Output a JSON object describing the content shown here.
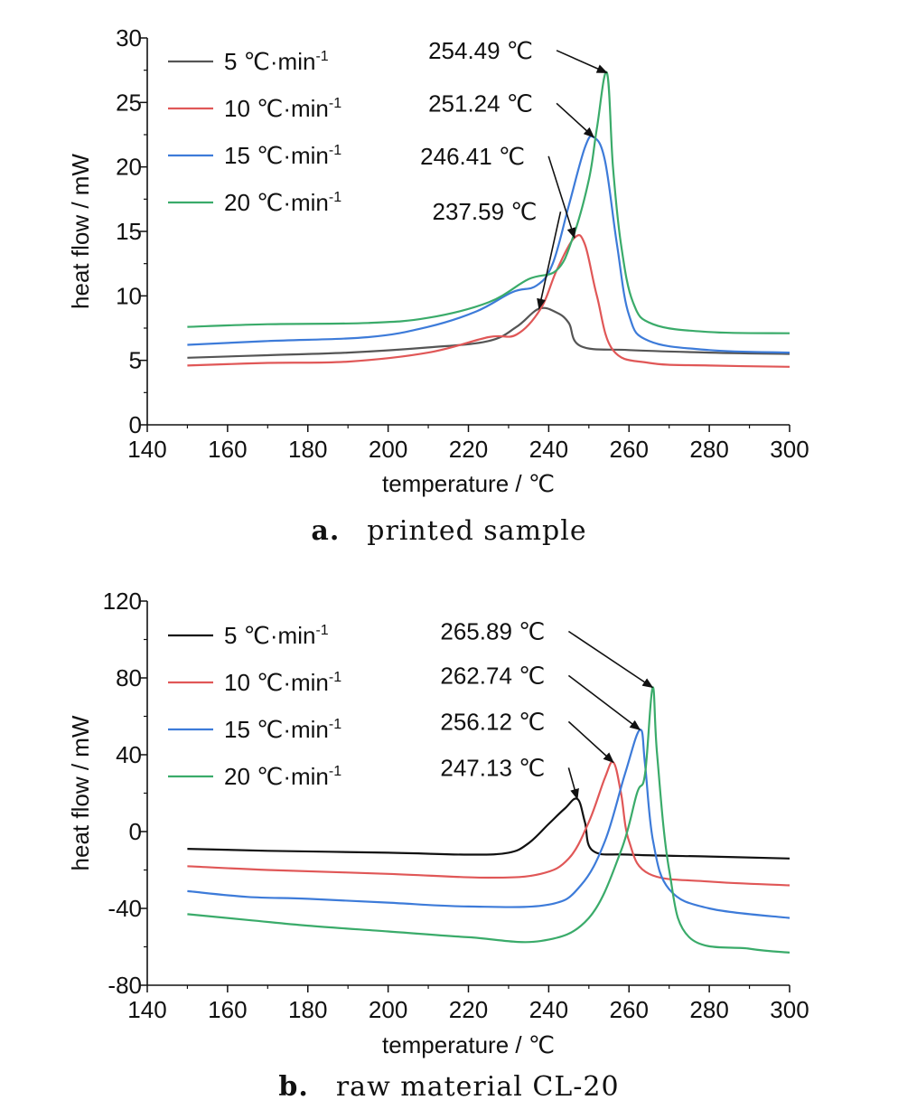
{
  "chart_data": [
    {
      "type": "line",
      "panel_label": "a.",
      "caption": "printed sample",
      "xlabel": "temperature / ℃",
      "ylabel": "heat flow / mW",
      "xlim": [
        140,
        300
      ],
      "ylim": [
        0,
        30
      ],
      "xticks": [
        140,
        160,
        180,
        200,
        220,
        240,
        260,
        280,
        300
      ],
      "yticks": [
        0,
        5,
        10,
        15,
        20,
        25,
        30
      ],
      "grid": false,
      "legend_position": "top-left",
      "series": [
        {
          "name": "5 ℃·min",
          "legend_sup": "-1",
          "color": "#555555",
          "x": [
            150,
            170,
            190,
            210,
            225,
            232,
            237.59,
            242,
            245,
            248,
            260,
            280,
            300
          ],
          "y": [
            5.2,
            5.4,
            5.6,
            6.0,
            6.5,
            7.6,
            9.0,
            8.7,
            7.9,
            6.1,
            5.8,
            5.6,
            5.5
          ]
        },
        {
          "name": "10 ℃·min",
          "legend_sup": "-1",
          "color": "#e05757",
          "x": [
            150,
            170,
            190,
            210,
            225,
            232,
            238,
            242,
            246.41,
            249,
            252,
            256,
            265,
            280,
            300
          ],
          "y": [
            4.6,
            4.8,
            4.9,
            5.6,
            6.8,
            7.0,
            9.0,
            12.0,
            14.5,
            14.0,
            10.0,
            5.8,
            4.8,
            4.6,
            4.5
          ]
        },
        {
          "name": "15 ℃·min",
          "legend_sup": "-1",
          "color": "#3d7bd9",
          "x": [
            150,
            170,
            195,
            210,
            222,
            231,
            237,
            241,
            245,
            249,
            251.24,
            254,
            257,
            260,
            265,
            280,
            300
          ],
          "y": [
            6.2,
            6.5,
            6.8,
            7.6,
            8.8,
            10.3,
            10.8,
            12.5,
            17.0,
            21.5,
            22.3,
            20.5,
            14.0,
            8.5,
            6.5,
            5.8,
            5.6
          ]
        },
        {
          "name": "20 ℃·min",
          "legend_sup": "-1",
          "color": "#3aab6a",
          "x": [
            150,
            170,
            195,
            210,
            225,
            235,
            242,
            246,
            250,
            252,
            254.49,
            256,
            258,
            261,
            266,
            280,
            300
          ],
          "y": [
            7.6,
            7.8,
            7.9,
            8.3,
            9.5,
            11.3,
            12.0,
            14.5,
            19.0,
            23.0,
            27.3,
            20.0,
            14.0,
            9.5,
            7.8,
            7.2,
            7.1
          ]
        }
      ],
      "annotations": [
        {
          "text": "254.49 ℃",
          "x": 254.49,
          "y": 27.3,
          "label_x": 210,
          "label_y": 28.4
        },
        {
          "text": "251.24 ℃",
          "x": 251.24,
          "y": 22.3,
          "label_x": 210,
          "label_y": 24.3
        },
        {
          "text": "246.41 ℃",
          "x": 246.41,
          "y": 14.5,
          "label_x": 208,
          "label_y": 20.2
        },
        {
          "text": "237.59 ℃",
          "x": 237.59,
          "y": 9.0,
          "label_x": 211,
          "label_y": 15.9
        }
      ]
    },
    {
      "type": "line",
      "panel_label": "b.",
      "caption": "raw material CL-20",
      "xlabel": "temperature / ℃",
      "ylabel": "heat flow / mW",
      "xlim": [
        140,
        300
      ],
      "ylim": [
        -80,
        120
      ],
      "xticks": [
        140,
        160,
        180,
        200,
        220,
        240,
        260,
        280,
        300
      ],
      "yticks": [
        -80,
        -40,
        0,
        40,
        80,
        120
      ],
      "grid": false,
      "legend_position": "top-left",
      "series": [
        {
          "name": "5 ℃·min",
          "legend_sup": "-1",
          "color": "#111111",
          "x": [
            150,
            170,
            200,
            220,
            230,
            235,
            240,
            244,
            247.13,
            249,
            251,
            260,
            280,
            300
          ],
          "y": [
            -9,
            -10,
            -11,
            -12,
            -11,
            -6,
            4,
            12,
            17,
            5,
            -10,
            -12,
            -13,
            -14
          ]
        },
        {
          "name": "10 ℃·min",
          "legend_sup": "-1",
          "color": "#e05757",
          "x": [
            150,
            170,
            200,
            225,
            238,
            245,
            250,
            254,
            256.12,
            258,
            260,
            265,
            280,
            300
          ],
          "y": [
            -18,
            -20,
            -22,
            -24,
            -22,
            -14,
            5,
            28,
            36,
            20,
            -5,
            -22,
            -26,
            -28
          ]
        },
        {
          "name": "15 ℃·min",
          "legend_sup": "-1",
          "color": "#3d7bd9",
          "x": [
            150,
            165,
            180,
            200,
            220,
            240,
            248,
            254,
            259,
            262.74,
            264,
            266,
            270,
            280,
            300
          ],
          "y": [
            -31,
            -34,
            -35,
            -37,
            -39,
            -38,
            -28,
            -5,
            30,
            53,
            35,
            -5,
            -30,
            -40,
            -45
          ]
        },
        {
          "name": "20 ℃·min",
          "legend_sup": "-1",
          "color": "#3aab6a",
          "x": [
            150,
            165,
            180,
            200,
            220,
            238,
            250,
            258,
            262,
            264,
            265.89,
            267,
            270,
            275,
            290,
            300
          ],
          "y": [
            -43,
            -46,
            -49,
            -52,
            -55,
            -57,
            -45,
            -10,
            20,
            30,
            75,
            40,
            -20,
            -55,
            -61,
            -63
          ]
        }
      ],
      "annotations": [
        {
          "text": "265.89 ℃",
          "x": 265.89,
          "y": 75,
          "label_x": 213,
          "label_y": 100
        },
        {
          "text": "262.74 ℃",
          "x": 262.74,
          "y": 53,
          "label_x": 213,
          "label_y": 77
        },
        {
          "text": "256.12 ℃",
          "x": 256.12,
          "y": 36,
          "label_x": 213,
          "label_y": 53
        },
        {
          "text": "247.13 ℃",
          "x": 247.13,
          "y": 17,
          "label_x": 213,
          "label_y": 29
        }
      ]
    }
  ]
}
